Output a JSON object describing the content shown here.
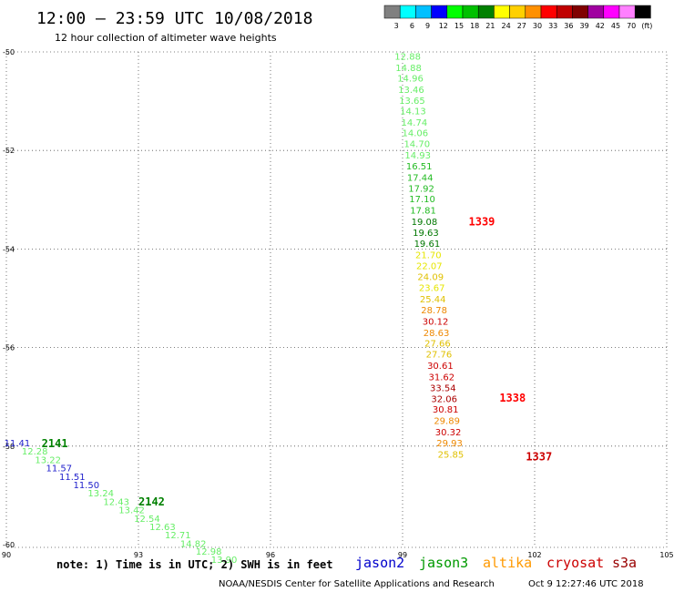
{
  "header": {
    "title": "12:00 – 23:59 UTC 10/08/2018",
    "subtitle": "12 hour collection of altimeter wave heights"
  },
  "color_scale": {
    "labels": [
      "3",
      "6",
      "9",
      "12",
      "15",
      "18",
      "21",
      "24",
      "27",
      "30",
      "33",
      "36",
      "39",
      "42",
      "45",
      "70",
      "(ft)"
    ],
    "colors": [
      "#808080",
      "#00ffff",
      "#00c0ff",
      "#0000ff",
      "#00ff00",
      "#00c000",
      "#008000",
      "#ffff00",
      "#ffd000",
      "#ff9000",
      "#ff0000",
      "#c00000",
      "#800000",
      "#a000a0",
      "#ff00ff",
      "#ff80ff",
      "#000000"
    ]
  },
  "map": {
    "x_ticks": [
      "90",
      "93",
      "96",
      "99",
      "102",
      "105"
    ],
    "y_ticks": [
      "-50",
      "-52",
      "-54",
      "-56",
      "-58",
      "-60"
    ],
    "x_range": [
      90,
      105
    ],
    "y_range": [
      -60,
      -50
    ],
    "gridlines_lon": [
      93,
      96,
      99,
      102
    ],
    "gridlines_lat": [
      -52,
      -54,
      -56,
      -58
    ]
  },
  "tracks": [
    {
      "pass": "1339",
      "pass_lon": 100.5,
      "pass_lat": -53.45,
      "pass_color": "#ff0000",
      "points": [
        {
          "v": "12.88",
          "lon": 98.82,
          "lat": -50.08,
          "c": "#66ee66"
        },
        {
          "v": "14.88",
          "lon": 98.84,
          "lat": -50.31,
          "c": "#66ee66"
        },
        {
          "v": "14.96",
          "lon": 98.88,
          "lat": -50.53,
          "c": "#66ee66"
        },
        {
          "v": "13.46",
          "lon": 98.9,
          "lat": -50.76,
          "c": "#66ee66"
        },
        {
          "v": "13.65",
          "lon": 98.92,
          "lat": -50.98,
          "c": "#66ee66"
        },
        {
          "v": "14.13",
          "lon": 98.94,
          "lat": -51.19,
          "c": "#66ee66"
        },
        {
          "v": "14.74",
          "lon": 98.97,
          "lat": -51.42,
          "c": "#66ee66"
        },
        {
          "v": "14.06",
          "lon": 98.99,
          "lat": -51.64,
          "c": "#66ee66"
        },
        {
          "v": "14.70",
          "lon": 99.03,
          "lat": -51.86,
          "c": "#66ee66"
        },
        {
          "v": "14.93",
          "lon": 99.05,
          "lat": -52.09,
          "c": "#66ee66"
        },
        {
          "v": "16.51",
          "lon": 99.08,
          "lat": -52.31,
          "c": "#22bb22"
        },
        {
          "v": "17.44",
          "lon": 99.1,
          "lat": -52.54,
          "c": "#22bb22"
        },
        {
          "v": "17.92",
          "lon": 99.13,
          "lat": -52.76,
          "c": "#22bb22"
        },
        {
          "v": "17.10",
          "lon": 99.15,
          "lat": -52.98,
          "c": "#22bb22"
        },
        {
          "v": "17.81",
          "lon": 99.17,
          "lat": -53.21,
          "c": "#22bb22"
        },
        {
          "v": "19.08",
          "lon": 99.2,
          "lat": -53.44,
          "c": "#007700"
        },
        {
          "v": "19.63",
          "lon": 99.23,
          "lat": -53.66,
          "c": "#007700"
        },
        {
          "v": "19.61",
          "lon": 99.26,
          "lat": -53.88,
          "c": "#007700"
        },
        {
          "v": "21.70",
          "lon": 99.29,
          "lat": -54.11,
          "c": "#e6e600"
        },
        {
          "v": "22.07",
          "lon": 99.31,
          "lat": -54.33,
          "c": "#e6e600"
        },
        {
          "v": "24.09",
          "lon": 99.34,
          "lat": -54.56,
          "c": "#e0c000"
        },
        {
          "v": "23.67",
          "lon": 99.37,
          "lat": -54.78,
          "c": "#e6e600"
        },
        {
          "v": "25.44",
          "lon": 99.39,
          "lat": -55.01,
          "c": "#e0c000"
        },
        {
          "v": "28.78",
          "lon": 99.42,
          "lat": -55.23,
          "c": "#ee8800"
        },
        {
          "v": "30.12",
          "lon": 99.45,
          "lat": -55.46,
          "c": "#cc0000"
        },
        {
          "v": "28.63",
          "lon": 99.47,
          "lat": -55.69,
          "c": "#ee8800"
        },
        {
          "v": "27.66",
          "lon": 99.5,
          "lat": -55.91,
          "c": "#e0c000"
        },
        {
          "v": "27.76",
          "lon": 99.53,
          "lat": -56.13,
          "c": "#e0c000"
        },
        {
          "v": "30.61",
          "lon": 99.56,
          "lat": -56.36,
          "c": "#cc0000"
        },
        {
          "v": "31.62",
          "lon": 99.59,
          "lat": -56.59,
          "c": "#cc0000"
        },
        {
          "v": "33.54",
          "lon": 99.62,
          "lat": -56.81,
          "c": "#aa0000"
        },
        {
          "v": "32.06",
          "lon": 99.65,
          "lat": -57.03,
          "c": "#aa0000"
        },
        {
          "v": "30.81",
          "lon": 99.68,
          "lat": -57.25,
          "c": "#cc0000"
        },
        {
          "v": "29.89",
          "lon": 99.71,
          "lat": -57.48,
          "c": "#ee8800"
        },
        {
          "v": "30.32",
          "lon": 99.74,
          "lat": -57.71,
          "c": "#cc0000"
        },
        {
          "v": "29.93",
          "lon": 99.77,
          "lat": -57.93,
          "c": "#ee8800"
        },
        {
          "v": "25.85",
          "lon": 99.8,
          "lat": -58.16,
          "c": "#e0c000"
        }
      ]
    },
    {
      "pass": "1338",
      "pass_lon": 101.2,
      "pass_lat": -57.02,
      "pass_color": "#ff0000",
      "points": []
    },
    {
      "pass": "1337",
      "pass_lon": 101.8,
      "pass_lat": -58.22,
      "pass_color": "#cc0000",
      "points": []
    },
    {
      "pass": "2141",
      "pass_lon": 90.8,
      "pass_lat": -57.95,
      "pass_color": "#008000",
      "points": [
        {
          "v": "11.41",
          "lon": 89.95,
          "lat": -57.93,
          "c": "#2222cc"
        },
        {
          "v": "12.28",
          "lon": 90.35,
          "lat": -58.1,
          "c": "#66ee66"
        },
        {
          "v": "13.22",
          "lon": 90.65,
          "lat": -58.27,
          "c": "#66ee66"
        },
        {
          "v": "11.57",
          "lon": 90.9,
          "lat": -58.44,
          "c": "#2222cc"
        },
        {
          "v": "11.51",
          "lon": 91.2,
          "lat": -58.61,
          "c": "#2222cc"
        },
        {
          "v": "11.50",
          "lon": 91.52,
          "lat": -58.78,
          "c": "#2222cc"
        },
        {
          "v": "13.24",
          "lon": 91.85,
          "lat": -58.95,
          "c": "#66ee66"
        },
        {
          "v": "12.43",
          "lon": 92.2,
          "lat": -59.12,
          "c": "#66ee66"
        },
        {
          "v": "13.42",
          "lon": 92.55,
          "lat": -59.29,
          "c": "#66ee66"
        },
        {
          "v": "12.54",
          "lon": 92.9,
          "lat": -59.46,
          "c": "#66ee66"
        },
        {
          "v": "12.63",
          "lon": 93.25,
          "lat": -59.63,
          "c": "#66ee66"
        },
        {
          "v": "12.71",
          "lon": 93.6,
          "lat": -59.8,
          "c": "#66ee66"
        },
        {
          "v": "14.82",
          "lon": 93.95,
          "lat": -59.97,
          "c": "#66ee66"
        },
        {
          "v": "12.98",
          "lon": 94.3,
          "lat": -60.13,
          "c": "#66ee66"
        },
        {
          "v": "13.90",
          "lon": 94.65,
          "lat": -60.3,
          "c": "#66ee66"
        }
      ]
    },
    {
      "pass": "2142",
      "pass_lon": 93.0,
      "pass_lat": -59.13,
      "pass_color": "#008000",
      "points": []
    }
  ],
  "footer": {
    "note": "note: 1) Time is in UTC; 2) SWH is in feet",
    "satellites": [
      {
        "name": "jason2",
        "color": "#0000cc"
      },
      {
        "name": "jason3",
        "color": "#009900"
      },
      {
        "name": "altika",
        "color": "#ff9900"
      },
      {
        "name": "cryosat",
        "color": "#cc0000"
      },
      {
        "name": "s3a",
        "color": "#990000"
      }
    ],
    "credit": "NOAA/NESDIS Center for Satellite Applications and Research",
    "timestamp": "Oct  9 12:27:46 UTC 2018"
  }
}
